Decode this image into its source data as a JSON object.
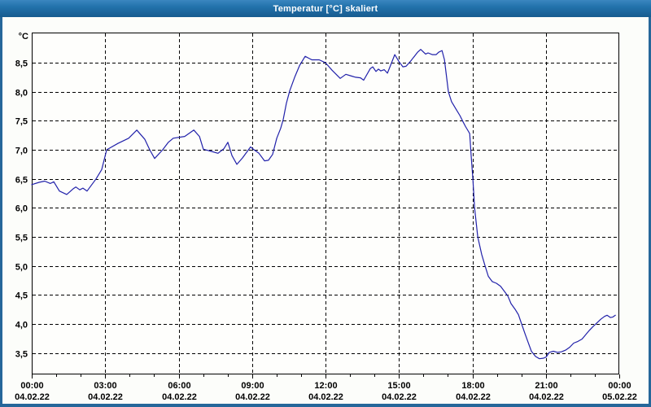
{
  "window": {
    "title": "Temperatur [°C] skaliert",
    "colors": {
      "titlebar_top": "#3a86bf",
      "titlebar_bottom": "#175b8f",
      "frame": "#26679a",
      "background": "#fcfdfa"
    }
  },
  "chart": {
    "y_unit_label": "°C",
    "colors": {
      "line": "#2121aa",
      "grid": "#000000",
      "axis": "#000000",
      "tick_text": "#000000",
      "plot_bg": "#fefefc"
    },
    "y_ticks": [
      {
        "label": "8,5",
        "value": 8.5
      },
      {
        "label": "8,0",
        "value": 8.0
      },
      {
        "label": "7,5",
        "value": 7.5
      },
      {
        "label": "7,0",
        "value": 7.0
      },
      {
        "label": "6,5",
        "value": 6.5
      },
      {
        "label": "6,0",
        "value": 6.0
      },
      {
        "label": "5,5",
        "value": 5.5
      },
      {
        "label": "5,0",
        "value": 5.0
      },
      {
        "label": "4,5",
        "value": 4.5
      },
      {
        "label": "4,0",
        "value": 4.0
      },
      {
        "label": "3,5",
        "value": 3.5
      }
    ],
    "x_ticks": [
      {
        "hour": 0,
        "time": "00:00",
        "date": "04.02.22"
      },
      {
        "hour": 3,
        "time": "03:00",
        "date": "04.02.22"
      },
      {
        "hour": 6,
        "time": "06:00",
        "date": "04.02.22"
      },
      {
        "hour": 9,
        "time": "09:00",
        "date": "04.02.22"
      },
      {
        "hour": 12,
        "time": "12:00",
        "date": "04.02.22"
      },
      {
        "hour": 15,
        "time": "15:00",
        "date": "04.02.22"
      },
      {
        "hour": 18,
        "time": "18:00",
        "date": "04.02.22"
      },
      {
        "hour": 21,
        "time": "21:00",
        "date": "04.02.22"
      },
      {
        "hour": 24,
        "time": "00:00",
        "date": "05.02.22"
      }
    ]
  },
  "chart_data": {
    "type": "line",
    "title": "Temperatur [°C] skaliert",
    "xlabel": "",
    "ylabel": "°C",
    "x_unit": "hours since 04.02.22 00:00",
    "xlim": [
      0,
      24
    ],
    "ylim": [
      3.13,
      9.02
    ],
    "grid": true,
    "legend": false,
    "series": [
      {
        "name": "Temperatur",
        "x": [
          0.0,
          0.3,
          0.53,
          0.76,
          0.9,
          1.13,
          1.43,
          1.7,
          1.8,
          1.96,
          2.09,
          2.26,
          2.63,
          2.86,
          3.06,
          3.52,
          3.96,
          4.29,
          4.62,
          4.82,
          5.02,
          5.35,
          5.58,
          5.78,
          6.25,
          6.62,
          6.85,
          7.01,
          7.28,
          7.61,
          7.85,
          8.01,
          8.18,
          8.38,
          8.61,
          8.94,
          9.08,
          9.28,
          9.51,
          9.67,
          9.84,
          10.01,
          10.17,
          10.27,
          10.4,
          10.54,
          10.74,
          10.94,
          11.17,
          11.44,
          11.74,
          12.0,
          12.27,
          12.6,
          12.83,
          13.07,
          13.23,
          13.43,
          13.56,
          13.83,
          13.93,
          14.06,
          14.16,
          14.26,
          14.4,
          14.53,
          14.7,
          14.83,
          15.0,
          15.16,
          15.29,
          15.46,
          15.63,
          15.76,
          15.89,
          16.09,
          16.19,
          16.36,
          16.52,
          16.62,
          16.76,
          16.86,
          17.02,
          17.15,
          17.32,
          17.49,
          17.62,
          17.72,
          17.82,
          17.89,
          17.95,
          18.02,
          18.09,
          18.22,
          18.38,
          18.52,
          18.65,
          18.81,
          18.98,
          19.15,
          19.31,
          19.45,
          19.58,
          19.75,
          19.88,
          20.01,
          20.15,
          20.28,
          20.41,
          20.58,
          20.74,
          20.91,
          21.01,
          21.14,
          21.31,
          21.48,
          21.64,
          21.81,
          21.98,
          22.14,
          22.31,
          22.48,
          22.64,
          22.78,
          22.94,
          23.07,
          23.24,
          23.4,
          23.5,
          23.64,
          23.74,
          23.84
        ],
        "y": [
          6.4,
          6.44,
          6.46,
          6.42,
          6.45,
          6.29,
          6.23,
          6.33,
          6.36,
          6.31,
          6.34,
          6.29,
          6.5,
          6.66,
          7.0,
          7.11,
          7.2,
          7.34,
          7.18,
          7.0,
          6.85,
          7.0,
          7.13,
          7.2,
          7.23,
          7.34,
          7.23,
          7.01,
          6.98,
          6.94,
          7.02,
          7.13,
          6.9,
          6.75,
          6.86,
          7.05,
          7.0,
          6.94,
          6.81,
          6.82,
          6.92,
          7.2,
          7.37,
          7.52,
          7.8,
          8.02,
          8.25,
          8.45,
          8.61,
          8.55,
          8.55,
          8.5,
          8.37,
          8.23,
          8.3,
          8.27,
          8.25,
          8.24,
          8.2,
          8.4,
          8.43,
          8.35,
          8.39,
          8.36,
          8.38,
          8.32,
          8.5,
          8.64,
          8.52,
          8.43,
          8.44,
          8.52,
          8.61,
          8.68,
          8.73,
          8.65,
          8.67,
          8.64,
          8.64,
          8.68,
          8.71,
          8.55,
          8.0,
          7.83,
          7.71,
          7.59,
          7.48,
          7.4,
          7.33,
          7.28,
          6.9,
          6.5,
          6.0,
          5.5,
          5.2,
          5.0,
          4.82,
          4.73,
          4.7,
          4.65,
          4.56,
          4.48,
          4.35,
          4.25,
          4.16,
          4.0,
          3.83,
          3.68,
          3.53,
          3.44,
          3.4,
          3.41,
          3.43,
          3.51,
          3.53,
          3.51,
          3.52,
          3.55,
          3.6,
          3.67,
          3.7,
          3.74,
          3.82,
          3.89,
          3.96,
          4.01,
          4.08,
          4.13,
          4.15,
          4.11,
          4.12,
          4.15
        ]
      }
    ]
  }
}
